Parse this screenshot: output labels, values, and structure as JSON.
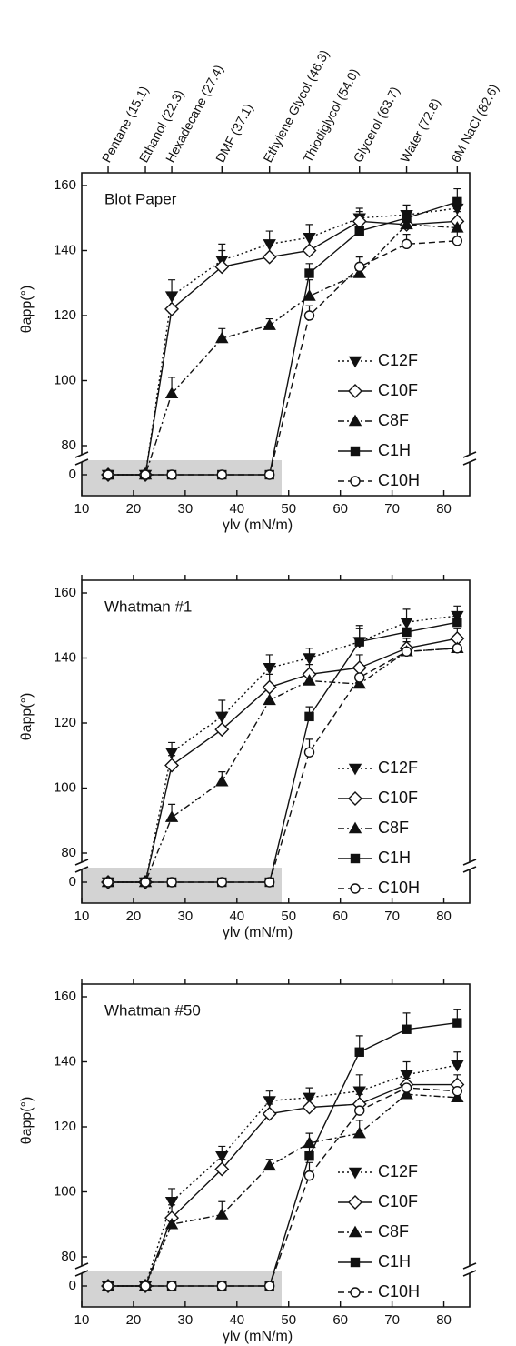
{
  "chart_data": [
    {
      "type": "line",
      "title": "Blot Paper",
      "x_label": "γlv (mN/m)",
      "y_label": "θapp(°)",
      "x": [
        15.1,
        22.3,
        27.4,
        37.1,
        46.3,
        54.0,
        63.7,
        72.8,
        82.6
      ],
      "xlim": [
        10,
        85
      ],
      "xticks": [
        10,
        20,
        30,
        40,
        50,
        60,
        70,
        80
      ],
      "x2ticks": [
        {
          "value": 15.1,
          "label": "Pentane (15.1)"
        },
        {
          "value": 22.3,
          "label": "Ethanol (22.3)"
        },
        {
          "value": 27.4,
          "label": "Hexadecane (27.4)"
        },
        {
          "value": 37.1,
          "label": "DMF (37.1)"
        },
        {
          "value": 46.3,
          "label": "Ethylene Glycol (46.3)"
        },
        {
          "value": 54.0,
          "label": "Thiodiglycol (54.0)"
        },
        {
          "value": 63.7,
          "label": "Glycerol (63.7)"
        },
        {
          "value": 72.8,
          "label": "Water (72.8)"
        },
        {
          "value": 82.6,
          "label": "6M NaCl (82.6)"
        }
      ],
      "ylim": [
        0,
        160
      ],
      "yticks": [
        0,
        80,
        100,
        120,
        140,
        160
      ],
      "y_break": [
        0,
        80
      ],
      "legend": "lower right",
      "series": [
        {
          "name": "C12F",
          "color": "#111111",
          "marker": "triangle-down",
          "filled": true,
          "line_style": "dotted",
          "values": [
            0,
            0,
            126,
            137,
            142,
            144,
            150,
            151,
            153
          ],
          "errors": [
            0,
            0,
            5,
            5,
            4,
            4,
            3,
            3,
            3
          ]
        },
        {
          "name": "C10F",
          "color": "#111111",
          "marker": "diamond",
          "filled": false,
          "line_style": "solid",
          "values": [
            0,
            0,
            122,
            135,
            138,
            140,
            149,
            148,
            149
          ],
          "errors": [
            0,
            0,
            4,
            5,
            4,
            4,
            3,
            3,
            3
          ]
        },
        {
          "name": "C8F",
          "color": "#111111",
          "marker": "triangle-up",
          "filled": true,
          "line_style": "dashdot",
          "values": [
            0,
            0,
            96,
            113,
            117,
            126,
            133,
            148,
            147
          ],
          "errors": [
            0,
            0,
            5,
            3,
            2,
            5,
            3,
            3,
            3
          ]
        },
        {
          "name": "C1H",
          "color": "#111111",
          "marker": "square",
          "filled": true,
          "line_style": "solid",
          "values": [
            0,
            0,
            0,
            0,
            0,
            133,
            146,
            150,
            155
          ],
          "errors": [
            0,
            0,
            0,
            0,
            0,
            3,
            5,
            4,
            4
          ]
        },
        {
          "name": "C10H",
          "color": "#111111",
          "marker": "circle",
          "filled": false,
          "line_style": "dashed",
          "values": [
            0,
            0,
            0,
            0,
            0,
            120,
            135,
            142,
            143
          ],
          "errors": [
            0,
            0,
            0,
            0,
            0,
            3,
            3,
            3,
            3
          ]
        }
      ]
    },
    {
      "type": "line",
      "title": "Whatman #1",
      "x_label": "γlv (mN/m)",
      "y_label": "θapp(°)",
      "x": [
        15.1,
        22.3,
        27.4,
        37.1,
        46.3,
        54.0,
        63.7,
        72.8,
        82.6
      ],
      "xlim": [
        10,
        85
      ],
      "xticks": [
        10,
        20,
        30,
        40,
        50,
        60,
        70,
        80
      ],
      "ylim": [
        0,
        160
      ],
      "yticks": [
        0,
        80,
        100,
        120,
        140,
        160
      ],
      "y_break": [
        0,
        80
      ],
      "legend": "lower right",
      "series": [
        {
          "name": "C12F",
          "color": "#111111",
          "marker": "triangle-down",
          "filled": true,
          "line_style": "dotted",
          "values": [
            0,
            0,
            111,
            122,
            137,
            140,
            145,
            151,
            153
          ],
          "errors": [
            0,
            0,
            3,
            5,
            4,
            3,
            5,
            4,
            3
          ]
        },
        {
          "name": "C10F",
          "color": "#111111",
          "marker": "diamond",
          "filled": false,
          "line_style": "solid",
          "values": [
            0,
            0,
            107,
            118,
            131,
            135,
            137,
            143,
            146
          ],
          "errors": [
            0,
            0,
            3,
            4,
            4,
            3,
            4,
            3,
            3
          ]
        },
        {
          "name": "C8F",
          "color": "#111111",
          "marker": "triangle-up",
          "filled": true,
          "line_style": "dashdot",
          "values": [
            0,
            0,
            91,
            102,
            127,
            133,
            132,
            142,
            143
          ],
          "errors": [
            0,
            0,
            4,
            3,
            3,
            3,
            3,
            3,
            3
          ]
        },
        {
          "name": "C1H",
          "color": "#111111",
          "marker": "square",
          "filled": true,
          "line_style": "solid",
          "values": [
            0,
            0,
            0,
            0,
            0,
            122,
            145,
            148,
            151
          ],
          "errors": [
            0,
            0,
            0,
            0,
            0,
            3,
            4,
            3,
            3
          ]
        },
        {
          "name": "C10H",
          "color": "#111111",
          "marker": "circle",
          "filled": false,
          "line_style": "dashed",
          "values": [
            0,
            0,
            0,
            0,
            0,
            111,
            134,
            142,
            143
          ],
          "errors": [
            0,
            0,
            0,
            0,
            0,
            4,
            4,
            3,
            3
          ]
        }
      ]
    },
    {
      "type": "line",
      "title": "Whatman #50",
      "x_label": "γlv (mN/m)",
      "y_label": "θapp(°)",
      "x": [
        15.1,
        22.3,
        27.4,
        37.1,
        46.3,
        54.0,
        63.7,
        72.8,
        82.6
      ],
      "xlim": [
        10,
        85
      ],
      "xticks": [
        10,
        20,
        30,
        40,
        50,
        60,
        70,
        80
      ],
      "ylim": [
        0,
        160
      ],
      "yticks": [
        0,
        80,
        100,
        120,
        140,
        160
      ],
      "y_break": [
        0,
        80
      ],
      "legend": "lower right",
      "series": [
        {
          "name": "C12F",
          "color": "#111111",
          "marker": "triangle-down",
          "filled": true,
          "line_style": "dotted",
          "values": [
            0,
            0,
            97,
            111,
            128,
            129,
            131,
            136,
            139
          ],
          "errors": [
            0,
            0,
            4,
            3,
            3,
            3,
            5,
            4,
            4
          ]
        },
        {
          "name": "C10F",
          "color": "#111111",
          "marker": "diamond",
          "filled": false,
          "line_style": "solid",
          "values": [
            0,
            0,
            92,
            107,
            124,
            126,
            127,
            133,
            133
          ],
          "errors": [
            0,
            0,
            4,
            3,
            3,
            3,
            4,
            3,
            3
          ]
        },
        {
          "name": "C8F",
          "color": "#111111",
          "marker": "triangle-up",
          "filled": true,
          "line_style": "dashdot",
          "values": [
            0,
            0,
            90,
            93,
            108,
            115,
            118,
            130,
            129
          ],
          "errors": [
            0,
            0,
            3,
            4,
            2,
            3,
            4,
            3,
            2
          ]
        },
        {
          "name": "C1H",
          "color": "#111111",
          "marker": "square",
          "filled": true,
          "line_style": "solid",
          "values": [
            0,
            0,
            0,
            0,
            0,
            111,
            143,
            150,
            152
          ],
          "errors": [
            0,
            0,
            0,
            0,
            0,
            4,
            5,
            5,
            4
          ]
        },
        {
          "name": "C10H",
          "color": "#111111",
          "marker": "circle",
          "filled": false,
          "line_style": "dashed",
          "values": [
            0,
            0,
            0,
            0,
            0,
            105,
            125,
            132,
            131
          ],
          "errors": [
            0,
            0,
            0,
            0,
            0,
            4,
            5,
            3,
            3
          ]
        }
      ]
    }
  ]
}
